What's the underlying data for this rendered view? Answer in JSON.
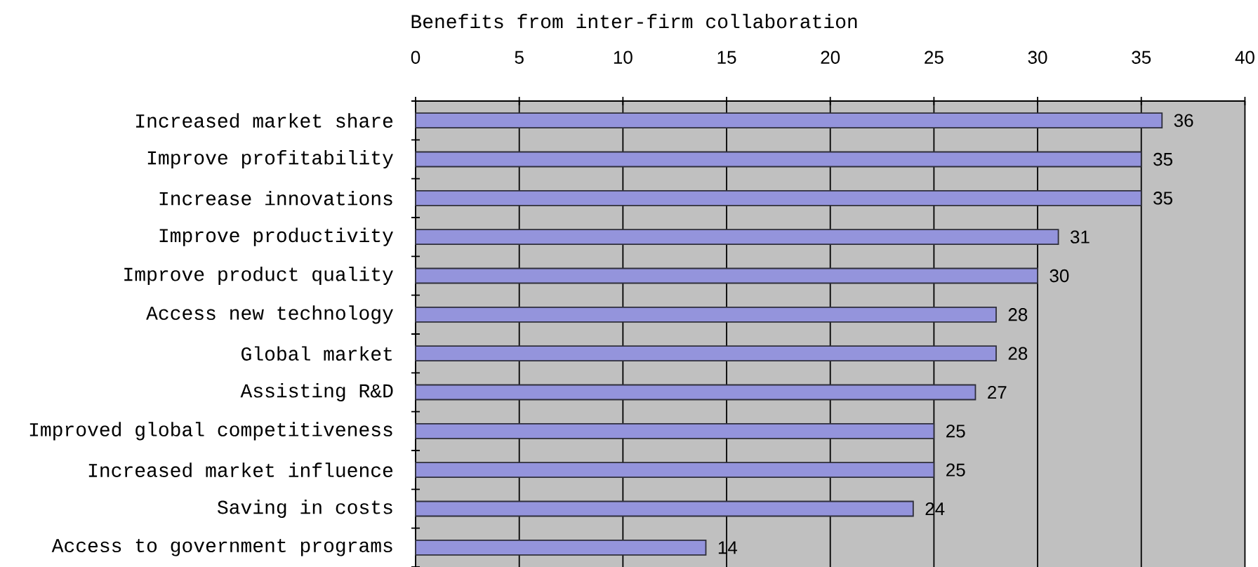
{
  "chart_data": {
    "type": "bar",
    "orientation": "horizontal",
    "title": "Benefits from inter-firm collaboration",
    "categories": [
      "Increased market share",
      "Improve profitability",
      "Increase innovations",
      "Improve productivity",
      "Improve product quality",
      "Access new technology",
      "Global market",
      "Assisting R&D",
      "Improved global competitiveness",
      "Increased market influence",
      "Saving in costs",
      "Access to government programs"
    ],
    "values": [
      36,
      35,
      35,
      31,
      30,
      28,
      28,
      27,
      25,
      25,
      24,
      14
    ],
    "color": "#9494dc",
    "xlim": [
      0,
      40
    ],
    "xticks": [
      0,
      5,
      10,
      15,
      20,
      25,
      30,
      35,
      40
    ],
    "grid": "x",
    "data_labels": true
  }
}
